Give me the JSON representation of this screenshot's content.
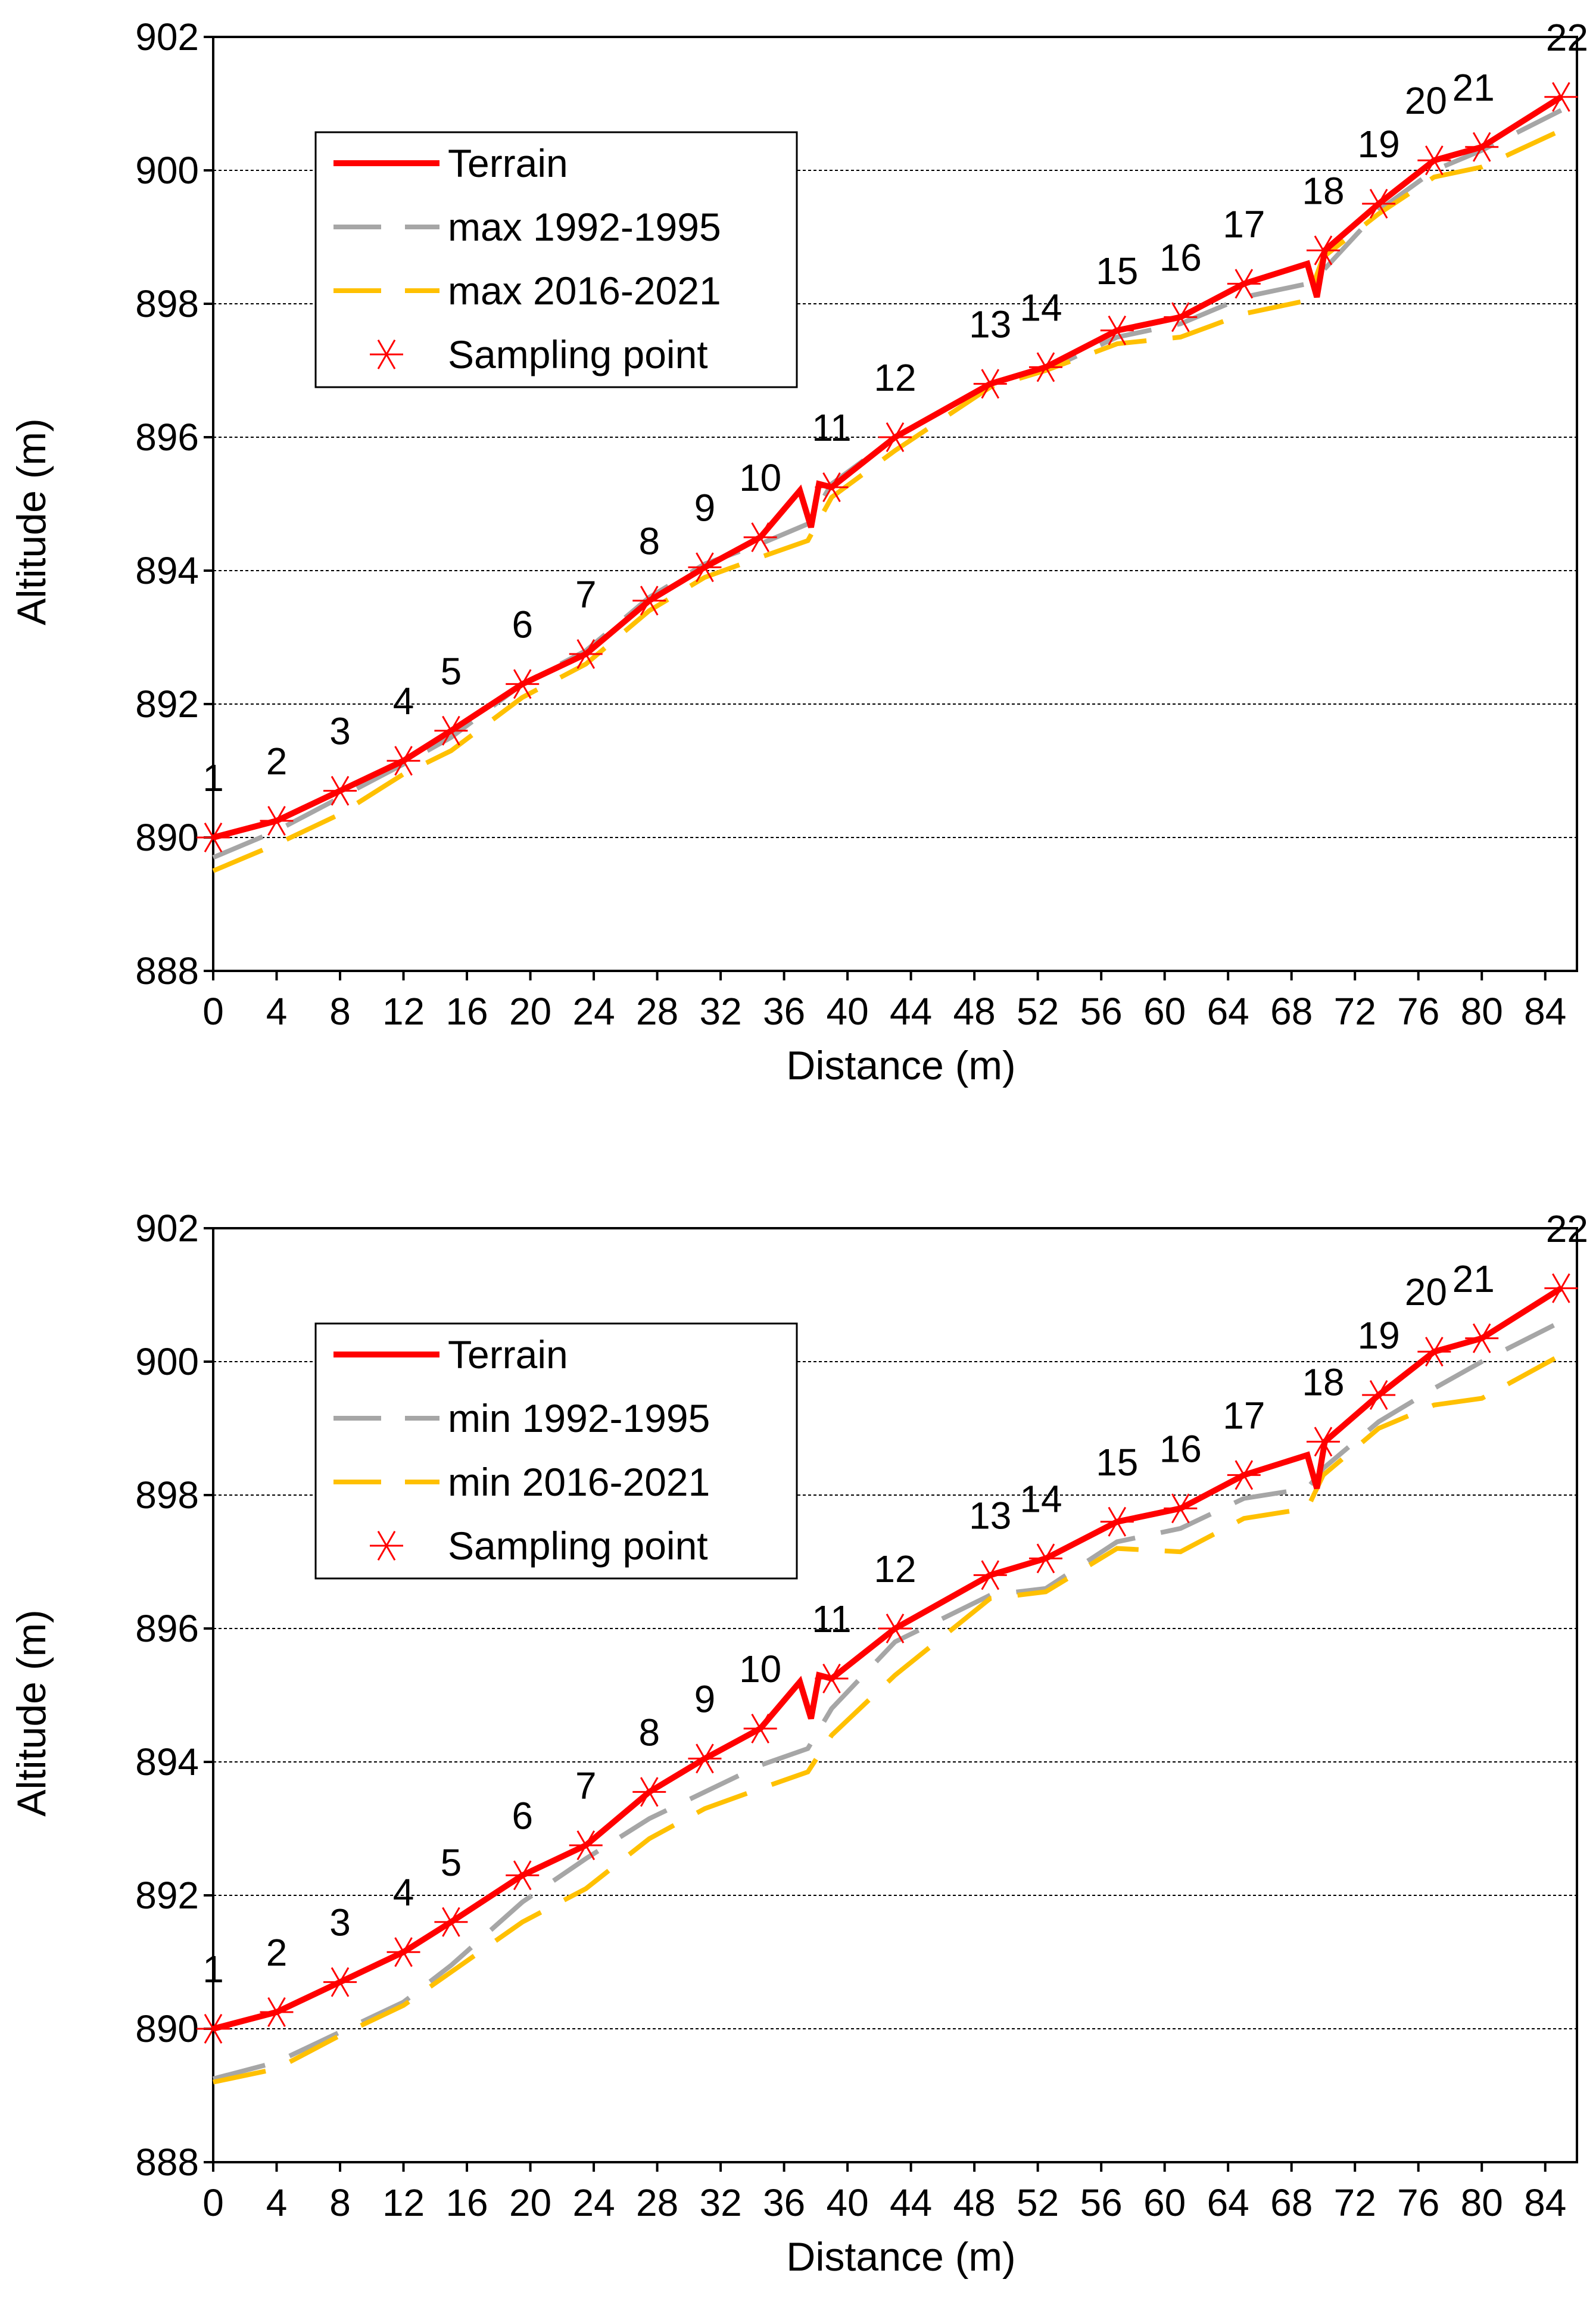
{
  "chart_data": [
    {
      "type": "line",
      "panel": "top",
      "title": "",
      "xlabel": "Distance (m)",
      "ylabel": "Altitude (m)",
      "xlim": [
        0,
        86
      ],
      "ylim": [
        888,
        902
      ],
      "xticks": [
        0,
        4,
        8,
        12,
        16,
        20,
        24,
        28,
        32,
        36,
        40,
        44,
        48,
        52,
        56,
        60,
        64,
        68,
        72,
        76,
        80,
        84
      ],
      "yticks": [
        888,
        890,
        892,
        894,
        896,
        898,
        900,
        902
      ],
      "grid": "horizontal dashed",
      "legend_position": "top-left",
      "series": [
        {
          "name": "Terrain",
          "style": "solid",
          "color": "#ff0000",
          "x": [
            0,
            4,
            8,
            12,
            15,
            19.5,
            23.5,
            27.5,
            31,
            34.5,
            37,
            37.7,
            38.2,
            39,
            43,
            49,
            52.5,
            57,
            61,
            65,
            69,
            69.6,
            70.1,
            73.5,
            77,
            80,
            85
          ],
          "y": [
            890,
            890.25,
            890.7,
            891.15,
            891.6,
            892.3,
            892.75,
            893.55,
            894.05,
            894.5,
            895.2,
            894.65,
            895.3,
            895.25,
            896,
            896.8,
            897.05,
            897.6,
            897.8,
            898.3,
            898.6,
            898.1,
            898.8,
            899.5,
            900.15,
            900.35,
            901.1
          ]
        },
        {
          "name": "max 1992-1995",
          "style": "dashed",
          "color": "#a6a6a6",
          "x": [
            0,
            4,
            8,
            12,
            15,
            19.5,
            23.5,
            27.5,
            31,
            34.5,
            37.5,
            39,
            43,
            49,
            52.5,
            57,
            61,
            65,
            69,
            70,
            73.5,
            77,
            80,
            85
          ],
          "y": [
            889.7,
            890.1,
            890.6,
            891.1,
            891.5,
            892.3,
            892.8,
            893.6,
            894.1,
            894.4,
            894.7,
            895.3,
            896.0,
            896.8,
            897.0,
            897.5,
            897.7,
            898.1,
            898.3,
            898.5,
            899.4,
            900.0,
            900.3,
            900.9
          ]
        },
        {
          "name": "max 2016-2021",
          "style": "dashed",
          "color": "#ffc000",
          "x": [
            0,
            4,
            8,
            12,
            15,
            19.5,
            23.5,
            27.5,
            31,
            34.5,
            37.5,
            39,
            43,
            49,
            52.5,
            57,
            61,
            65,
            69,
            70,
            73.5,
            77,
            80,
            85
          ],
          "y": [
            889.5,
            889.9,
            890.35,
            890.95,
            891.3,
            892.1,
            892.6,
            893.4,
            893.9,
            894.2,
            894.45,
            895.1,
            895.8,
            896.75,
            897.0,
            897.4,
            897.5,
            897.85,
            898.05,
            898.7,
            899.35,
            899.9,
            900.05,
            900.6
          ]
        }
      ],
      "sampling_points": {
        "name": "Sampling point",
        "marker": "asterisk",
        "labels": [
          "1",
          "2",
          "3",
          "4",
          "5",
          "6",
          "7",
          "8",
          "9",
          "10",
          "11",
          "12",
          "13",
          "14",
          "15",
          "16",
          "17",
          "18",
          "19",
          "20",
          "21",
          "22"
        ],
        "x": [
          0,
          4,
          8,
          12,
          15,
          19.5,
          23.5,
          27.5,
          31,
          34.5,
          39,
          43,
          49,
          52.5,
          57,
          61,
          65,
          70,
          73.5,
          77,
          80,
          85
        ],
        "y": [
          890,
          890.25,
          890.7,
          891.15,
          891.6,
          892.3,
          892.75,
          893.55,
          894.05,
          894.5,
          895.25,
          896,
          896.8,
          897.05,
          897.6,
          897.8,
          898.3,
          898.8,
          899.5,
          900.15,
          900.35,
          901.1
        ]
      }
    },
    {
      "type": "line",
      "panel": "bottom",
      "title": "",
      "xlabel": "Distance (m)",
      "ylabel": "Altitude (m)",
      "xlim": [
        0,
        86
      ],
      "ylim": [
        888,
        902
      ],
      "xticks": [
        0,
        4,
        8,
        12,
        16,
        20,
        24,
        28,
        32,
        36,
        40,
        44,
        48,
        52,
        56,
        60,
        64,
        68,
        72,
        76,
        80,
        84
      ],
      "yticks": [
        888,
        890,
        892,
        894,
        896,
        898,
        900,
        902
      ],
      "grid": "horizontal dashed",
      "legend_position": "top-left",
      "series": [
        {
          "name": "Terrain",
          "style": "solid",
          "color": "#ff0000",
          "x": [
            0,
            4,
            8,
            12,
            15,
            19.5,
            23.5,
            27.5,
            31,
            34.5,
            37,
            37.7,
            38.2,
            39,
            43,
            49,
            52.5,
            57,
            61,
            65,
            69,
            69.6,
            70.1,
            73.5,
            77,
            80,
            85
          ],
          "y": [
            890,
            890.25,
            890.7,
            891.15,
            891.6,
            892.3,
            892.75,
            893.55,
            894.05,
            894.5,
            895.2,
            894.65,
            895.3,
            895.25,
            896,
            896.8,
            897.05,
            897.6,
            897.8,
            898.3,
            898.6,
            898.1,
            898.8,
            899.5,
            900.15,
            900.35,
            901.1
          ]
        },
        {
          "name": "min 1992-1995",
          "style": "dashed",
          "color": "#a6a6a6",
          "x": [
            0,
            4,
            8,
            12,
            15,
            19.5,
            23.5,
            27.5,
            31,
            34.5,
            37.5,
            39,
            43,
            49,
            52.5,
            57,
            61,
            65,
            69,
            70,
            73.5,
            77,
            80,
            85
          ],
          "y": [
            889.25,
            889.5,
            889.95,
            890.4,
            890.95,
            891.9,
            892.55,
            893.15,
            893.55,
            893.95,
            894.2,
            894.8,
            895.8,
            896.5,
            896.6,
            897.3,
            897.5,
            897.95,
            898.1,
            898.4,
            899.1,
            899.6,
            900.0,
            900.6
          ]
        },
        {
          "name": "min 2016-2021",
          "style": "dashed",
          "color": "#ffc000",
          "x": [
            0,
            4,
            8,
            12,
            15,
            19.5,
            23.5,
            27.5,
            31,
            34.5,
            37.5,
            39,
            43,
            49,
            52.5,
            57,
            61,
            65,
            69,
            70,
            73.5,
            77,
            80,
            85
          ],
          "y": [
            889.2,
            889.4,
            889.9,
            890.35,
            890.85,
            891.6,
            892.1,
            892.85,
            893.3,
            893.6,
            893.85,
            894.4,
            895.3,
            896.45,
            896.55,
            897.2,
            897.15,
            897.65,
            897.8,
            898.3,
            899.0,
            899.35,
            899.45,
            900.1
          ]
        }
      ],
      "sampling_points": {
        "name": "Sampling point",
        "marker": "asterisk",
        "labels": [
          "1",
          "2",
          "3",
          "4",
          "5",
          "6",
          "7",
          "8",
          "9",
          "10",
          "11",
          "12",
          "13",
          "14",
          "15",
          "16",
          "17",
          "18",
          "19",
          "20",
          "21",
          "22"
        ],
        "x": [
          0,
          4,
          8,
          12,
          15,
          19.5,
          23.5,
          27.5,
          31,
          34.5,
          39,
          43,
          49,
          52.5,
          57,
          61,
          65,
          70,
          73.5,
          77,
          80,
          85
        ],
        "y": [
          890,
          890.25,
          890.7,
          891.15,
          891.6,
          892.3,
          892.75,
          893.55,
          894.05,
          894.5,
          895.25,
          896,
          896.8,
          897.05,
          897.6,
          897.8,
          898.3,
          898.8,
          899.5,
          900.15,
          900.35,
          901.1
        ]
      }
    }
  ]
}
